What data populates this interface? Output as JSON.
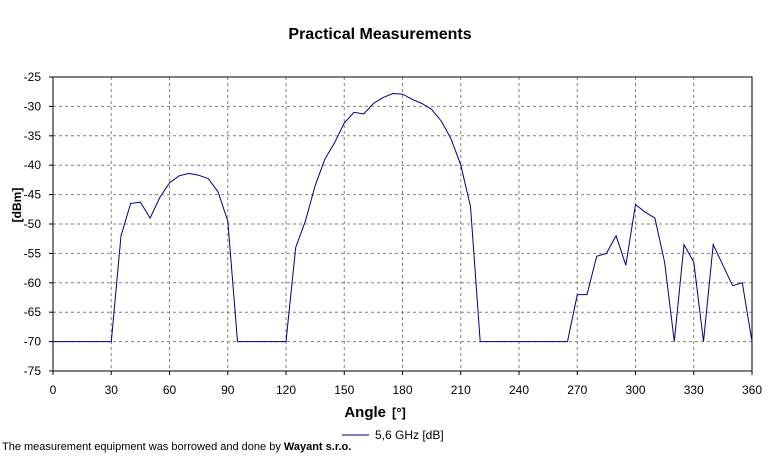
{
  "chart_data": {
    "type": "line",
    "title": "Practical Measurements",
    "xlabel": "Angle",
    "xunit": "[°]",
    "ylabel": "[dBm]",
    "xlim": [
      0,
      360
    ],
    "ylim": [
      -75,
      -25
    ],
    "xticks": [
      0,
      30,
      60,
      90,
      120,
      150,
      180,
      210,
      240,
      270,
      300,
      330,
      360
    ],
    "yticks": [
      -25,
      -30,
      -35,
      -40,
      -45,
      -50,
      -55,
      -60,
      -65,
      -70,
      -75
    ],
    "grid": true,
    "legend_position": "bottom-center",
    "series": [
      {
        "name": "5,6 GHz  [dB]",
        "color": "#000080",
        "x": [
          0,
          30,
          35,
          40,
          45,
          50,
          55,
          60,
          65,
          70,
          75,
          80,
          85,
          90,
          95,
          100,
          110,
          120,
          125,
          130,
          135,
          140,
          145,
          150,
          155,
          160,
          165,
          170,
          175,
          180,
          185,
          190,
          195,
          200,
          205,
          210,
          215,
          220,
          230,
          240,
          250,
          265,
          270,
          275,
          280,
          285,
          290,
          295,
          300,
          305,
          310,
          315,
          320,
          325,
          330,
          335,
          340,
          345,
          350,
          355,
          360
        ],
        "y": [
          -70,
          -70,
          -52,
          -46.5,
          -46.3,
          -49,
          -45.5,
          -43,
          -41.8,
          -41.4,
          -41.7,
          -42.3,
          -44.5,
          -49.5,
          -70,
          -70,
          -70,
          -70,
          -54,
          -49.5,
          -43.5,
          -39,
          -36.2,
          -32.8,
          -31,
          -31.3,
          -29.5,
          -28.5,
          -27.8,
          -27.9,
          -28.8,
          -29.5,
          -30.5,
          -32.5,
          -35.5,
          -40,
          -47,
          -70,
          -70,
          -70,
          -70,
          -70,
          -62,
          -62,
          -55.5,
          -55,
          -52,
          -57,
          -46.7,
          -48,
          -49,
          -56.5,
          -70,
          -53.5,
          -56.5,
          -70,
          -53.5,
          -57,
          -60.5,
          -60,
          -70
        ]
      }
    ]
  },
  "footer": {
    "text": "The measurement equipment was borrowed and done by ",
    "company": "Wayant s.r.o."
  }
}
